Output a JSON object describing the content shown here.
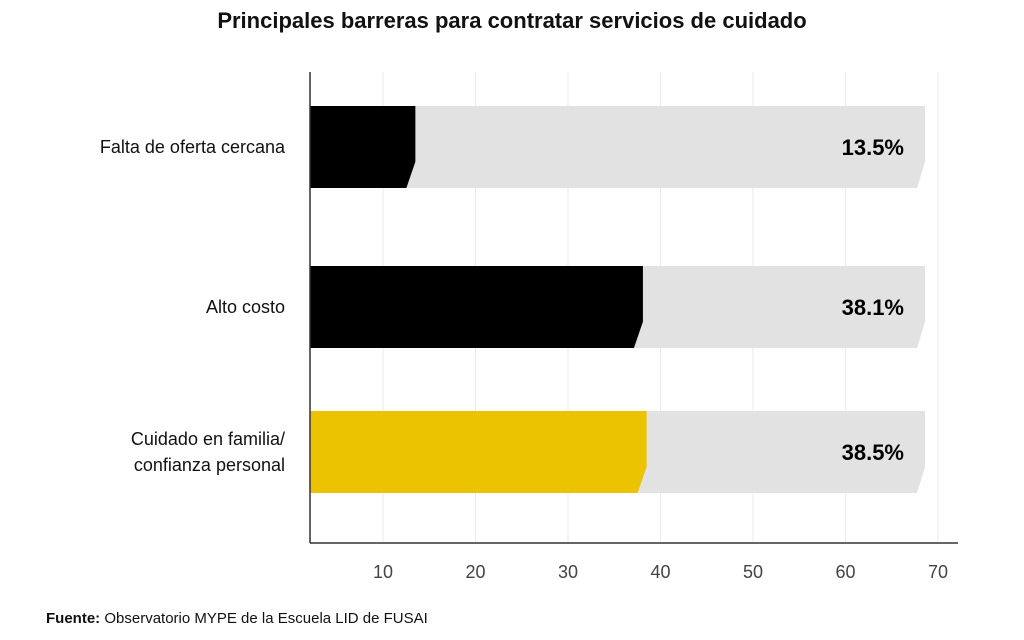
{
  "chart_data": {
    "type": "bar",
    "orientation": "horizontal",
    "title": "Principales barreras para contratar servicios de cuidado",
    "categories": [
      [
        "Falta de oferta cercana"
      ],
      [
        "Alto costo"
      ],
      [
        "Cuidado en familia/",
        "confianza personal"
      ]
    ],
    "values": [
      13.5,
      38.1,
      38.5
    ],
    "value_labels": [
      "13.5%",
      "38.1%",
      "38.5%"
    ],
    "bar_colors": [
      "#000000",
      "#000000",
      "#EBC300"
    ],
    "track_color": "#E2E2E2",
    "xlabel": "",
    "ylabel": "",
    "xlim": [
      2,
      70
    ],
    "xticks": [
      10,
      20,
      30,
      40,
      50,
      60,
      70
    ],
    "grid": true
  },
  "source": {
    "label": "Fuente:",
    "text": "Observatorio MYPE de la Escuela LID de FUSAI"
  }
}
